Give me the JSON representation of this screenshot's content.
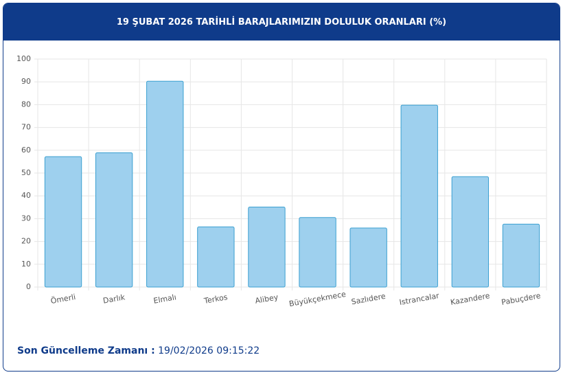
{
  "chart_data": {
    "type": "bar",
    "title": "19 ŞUBAT 2026 TARİHLİ BARAJLARIMIZIN DOLULUK ORANLARI (%)",
    "categories": [
      "Ömerli",
      "Darlık",
      "Elmalı",
      "Terkos",
      "Alibey",
      "Büyükçekmece",
      "Sazlıdere",
      "Istrancalar",
      "Kazandere",
      "Pabuçdere"
    ],
    "values": [
      57.2,
      58.9,
      90.3,
      26.4,
      35.1,
      30.5,
      25.9,
      79.8,
      48.4,
      27.6
    ],
    "color": "#9ed0ee",
    "edge_color": "#3a9fd0",
    "ylim": [
      0,
      100
    ],
    "yticks": [
      0,
      10,
      20,
      30,
      40,
      50,
      60,
      70,
      80,
      90,
      100
    ],
    "grid": true
  },
  "footer": {
    "label": "Son Güncelleme Zamanı :",
    "value": "19/02/2026 09:15:22"
  }
}
